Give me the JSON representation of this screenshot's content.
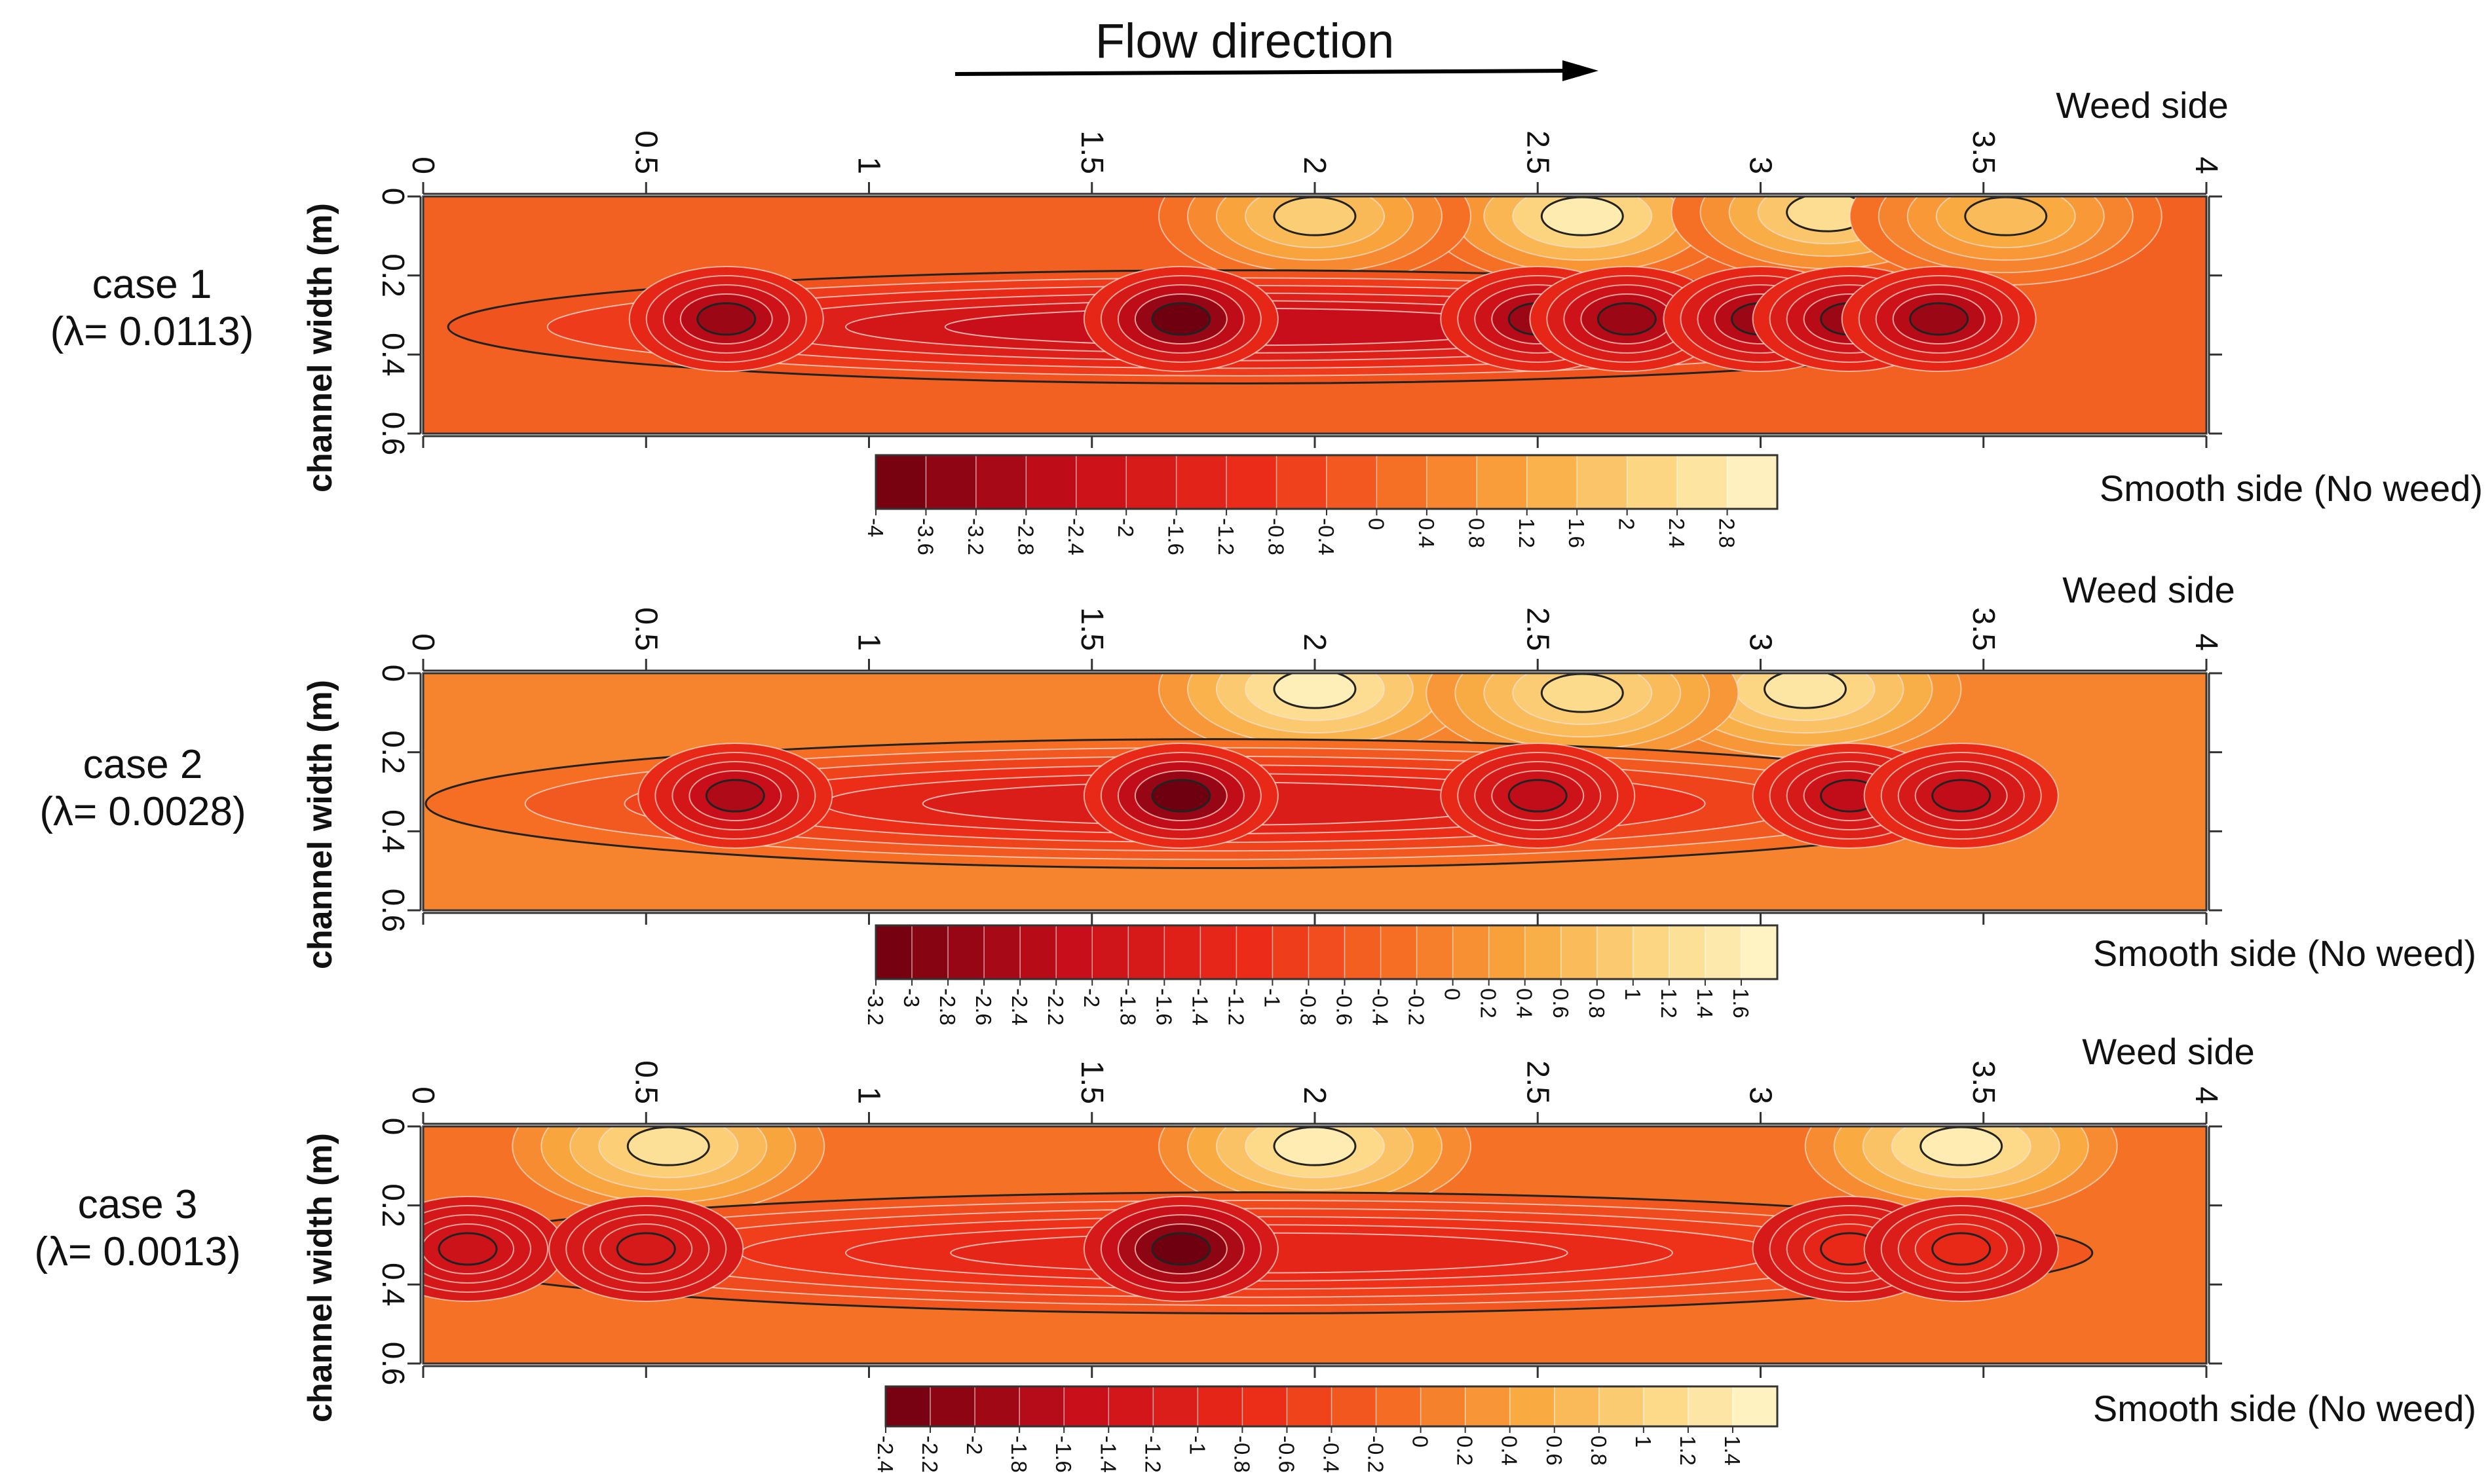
{
  "header": {
    "title": "Flow direction",
    "arrow_icon": "arrow-right-icon"
  },
  "chart_data": [
    {
      "type": "heatmap",
      "panel_label": "case 1",
      "lambda_label": "(λ= 0.0113)",
      "ylabel": "channel width (m)",
      "top_side_label": "Weed side",
      "bottom_side_label": "Smooth side (No weed)",
      "x_ticks": [
        "0",
        "0.5",
        "1",
        "1.5",
        "2",
        "2.5",
        "3",
        "3.5",
        "4"
      ],
      "y_ticks": [
        "0",
        "0.2",
        "0.4",
        "0.6"
      ],
      "xlim": [
        0,
        4
      ],
      "ylim": [
        0,
        0.6
      ],
      "colorbar": {
        "min": -4,
        "max": 3.2,
        "step": 0.4,
        "tick_labels": [
          "-4",
          "-3.6",
          "-3.2",
          "-2.8",
          "-2.4",
          "-2",
          "-1.6",
          "-1.2",
          "-0.8",
          "-0.4",
          "0",
          "0.4",
          "0.8",
          "1.2",
          "1.6",
          "2",
          "2.4",
          "2.8"
        ]
      },
      "features": [
        {
          "kind": "trough",
          "x": [
            0.1,
            3.55
          ],
          "y": [
            0.22,
            0.44
          ],
          "value": -2.4
        },
        {
          "kind": "minimum",
          "x": 1.7,
          "y": 0.31,
          "value": -4.0
        },
        {
          "kind": "minimum",
          "x": 0.68,
          "y": 0.31,
          "value": -3.2
        },
        {
          "kind": "minimum",
          "x": 2.5,
          "y": 0.31,
          "value": -3.2
        },
        {
          "kind": "minimum",
          "x": 2.7,
          "y": 0.31,
          "value": -3.2
        },
        {
          "kind": "minimum",
          "x": 3.0,
          "y": 0.31,
          "value": -3.2
        },
        {
          "kind": "minimum",
          "x": 3.2,
          "y": 0.31,
          "value": -3.2
        },
        {
          "kind": "minimum",
          "x": 3.4,
          "y": 0.31,
          "value": -3.2
        },
        {
          "kind": "maximum",
          "x": 2.6,
          "y": 0.05,
          "value": 2.8
        },
        {
          "kind": "maximum",
          "x": 3.15,
          "y": 0.04,
          "value": 2.4
        },
        {
          "kind": "maximum",
          "x": 3.55,
          "y": 0.05,
          "value": 1.6
        },
        {
          "kind": "maximum",
          "x": 2.0,
          "y": 0.05,
          "value": 2.0
        }
      ]
    },
    {
      "type": "heatmap",
      "panel_label": "case 2",
      "lambda_label": "(λ= 0.0028)",
      "ylabel": "channel width (m)",
      "top_side_label": "Weed side",
      "bottom_side_label": "Smooth side (No weed)",
      "x_ticks": [
        "0",
        "0.5",
        "1",
        "1.5",
        "2",
        "2.5",
        "3",
        "3.5",
        "4"
      ],
      "y_ticks": [
        "0",
        "0.2",
        "0.4",
        "0.6"
      ],
      "xlim": [
        0,
        4
      ],
      "ylim": [
        0,
        0.6
      ],
      "colorbar": {
        "min": -3.2,
        "max": 1.8,
        "step": 0.2,
        "tick_labels": [
          "-3.2",
          "-3",
          "-2.8",
          "-2.6",
          "-2.4",
          "-2.2",
          "-2",
          "-1.8",
          "-1.6",
          "-1.4",
          "-1.2",
          "-1",
          "-0.8",
          "-0.6",
          "-0.4",
          "-0.2",
          "0",
          "0.2",
          "0.4",
          "0.6",
          "0.8",
          "1",
          "1.2",
          "1.4",
          "1.6"
        ]
      },
      "features": [
        {
          "kind": "trough",
          "x": [
            0.05,
            3.5
          ],
          "y": [
            0.2,
            0.46
          ],
          "value": -1.6
        },
        {
          "kind": "minimum",
          "x": 1.7,
          "y": 0.31,
          "value": -3.2
        },
        {
          "kind": "minimum",
          "x": 0.7,
          "y": 0.31,
          "value": -2.4
        },
        {
          "kind": "minimum",
          "x": 2.5,
          "y": 0.31,
          "value": -2.2
        },
        {
          "kind": "minimum",
          "x": 3.2,
          "y": 0.31,
          "value": -2.2
        },
        {
          "kind": "minimum",
          "x": 3.45,
          "y": 0.31,
          "value": -2.2
        },
        {
          "kind": "maximum",
          "x": 2.0,
          "y": 0.04,
          "value": 1.6
        },
        {
          "kind": "maximum",
          "x": 3.1,
          "y": 0.04,
          "value": 1.4
        },
        {
          "kind": "maximum",
          "x": 2.6,
          "y": 0.05,
          "value": 1.2
        }
      ]
    },
    {
      "type": "heatmap",
      "panel_label": "case 3",
      "lambda_label": "(λ= 0.0013)",
      "ylabel": "channel width (m)",
      "top_side_label": "Weed side",
      "bottom_side_label": "Smooth side (No weed)",
      "x_ticks": [
        "0",
        "0.5",
        "1",
        "1.5",
        "2",
        "2.5",
        "3",
        "3.5",
        "4"
      ],
      "y_ticks": [
        "0",
        "0.2",
        "0.4",
        "0.6"
      ],
      "xlim": [
        0,
        4
      ],
      "ylim": [
        0,
        0.6
      ],
      "colorbar": {
        "min": -2.4,
        "max": 1.6,
        "step": 0.2,
        "tick_labels": [
          "-2.4",
          "-2.2",
          "-2",
          "-1.8",
          "-1.6",
          "-1.4",
          "-1.2",
          "-1",
          "-0.8",
          "-0.6",
          "-0.4",
          "-0.2",
          "0",
          "0.2",
          "0.4",
          "0.6",
          "0.8",
          "1",
          "1.2",
          "1.4"
        ]
      },
      "features": [
        {
          "kind": "trough",
          "x": [
            0.05,
            3.7
          ],
          "y": [
            0.2,
            0.44
          ],
          "value": -0.9
        },
        {
          "kind": "minimum",
          "x": 1.7,
          "y": 0.31,
          "value": -2.4
        },
        {
          "kind": "minimum",
          "x": 0.1,
          "y": 0.31,
          "value": -1.4
        },
        {
          "kind": "minimum",
          "x": 0.5,
          "y": 0.31,
          "value": -1.2
        },
        {
          "kind": "minimum",
          "x": 3.2,
          "y": 0.31,
          "value": -0.8
        },
        {
          "kind": "minimum",
          "x": 3.45,
          "y": 0.31,
          "value": -0.8
        },
        {
          "kind": "maximum",
          "x": 0.55,
          "y": 0.05,
          "value": 1.2
        },
        {
          "kind": "maximum",
          "x": 2.0,
          "y": 0.05,
          "value": 1.4
        },
        {
          "kind": "maximum",
          "x": 3.45,
          "y": 0.05,
          "value": 1.4
        }
      ]
    }
  ]
}
